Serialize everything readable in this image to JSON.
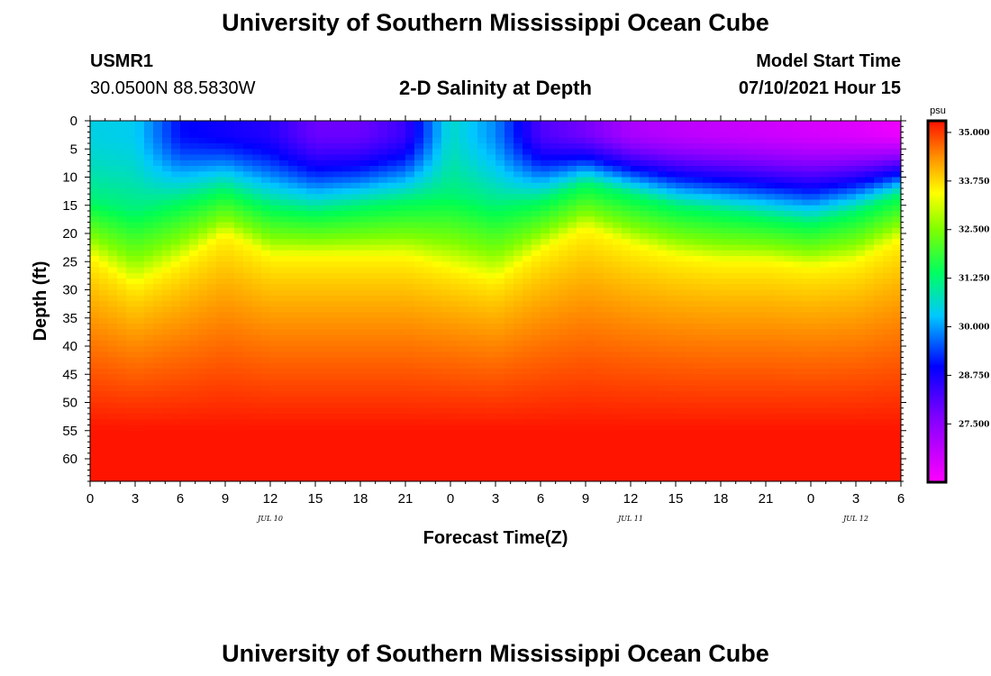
{
  "page": {
    "top_title": "University of Southern Mississippi Ocean Cube",
    "bottom_title": "University of Southern Mississippi Ocean Cube"
  },
  "station": {
    "id": "USMR1",
    "coords": "30.0500N  88.5830W"
  },
  "model": {
    "label": "Model Start Time",
    "start": "07/10/2021 Hour 15"
  },
  "chart_data": {
    "type": "heatmap",
    "title": "2-D Salinity at Depth",
    "xlabel": "Forecast Time(Z)",
    "ylabel": "Depth (ft)",
    "x_ticks": [
      "0",
      "3",
      "6",
      "9",
      "12",
      "15",
      "18",
      "21",
      "0",
      "3",
      "6",
      "9",
      "12",
      "15",
      "18",
      "21",
      "0",
      "3",
      "6"
    ],
    "x_range_hours": [
      0,
      54
    ],
    "date_labels": [
      {
        "label": "JUL 10",
        "hour": 12
      },
      {
        "label": "JUL 11",
        "hour": 36
      },
      {
        "label": "JUL 12",
        "hour": 51
      }
    ],
    "y_ticks": [
      "0",
      "5",
      "10",
      "15",
      "20",
      "25",
      "30",
      "35",
      "40",
      "45",
      "50",
      "55",
      "60"
    ],
    "y_range_ft": [
      0,
      64
    ],
    "colorbar": {
      "unit": "psu",
      "range": [
        26.0,
        35.3
      ],
      "tick_values": [
        35.0,
        33.75,
        32.5,
        31.25,
        30.0,
        28.75,
        27.5
      ],
      "tick_labels": [
        "35.000",
        "33.750",
        "32.500",
        "31.250",
        "30.000",
        "28.750",
        "27.500"
      ]
    },
    "isohaline_depth_profile": {
      "hours": [
        0,
        3,
        6,
        9,
        12,
        15,
        18,
        21,
        24,
        27,
        30,
        33,
        36,
        39,
        42,
        45,
        48,
        51,
        54
      ],
      "depth_31_ft": [
        14,
        16,
        14,
        12,
        15,
        16,
        15,
        14,
        13,
        15,
        14,
        11,
        13,
        15,
        16,
        17,
        18,
        16,
        13
      ],
      "depth_33_ft": [
        24,
        29,
        25,
        20,
        24,
        24,
        24,
        24,
        26,
        28,
        23,
        19,
        22,
        24,
        25,
        25,
        26,
        25,
        21
      ],
      "surface_salinity_psu": [
        30.2,
        30.1,
        28.8,
        28.6,
        28.4,
        27.7,
        27.7,
        28.2,
        30.4,
        29.6,
        28.0,
        27.6,
        27.0,
        26.8,
        26.7,
        26.6,
        26.5,
        26.4,
        26.2
      ]
    }
  },
  "colors": {
    "magenta": "#ff00ff",
    "blue": "#0000ff",
    "cyan": "#00ffff",
    "green": "#00ff00",
    "yellow": "#ffff00",
    "orange": "#ffa500",
    "red": "#ff1a00"
  }
}
